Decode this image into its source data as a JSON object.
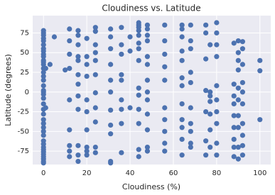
{
  "chart_data": {
    "type": "scatter",
    "title": "Cloudiness vs. Latitude",
    "x_label": "Cloudiness (%)",
    "y_label": "Latitude (degrees)",
    "color": "#4c72b0",
    "grid": true,
    "xlim": [
      -5,
      105
    ],
    "ylim": [
      -92,
      97
    ],
    "xticks": [
      0,
      20,
      40,
      60,
      80,
      100
    ],
    "yticks": [
      -75,
      -50,
      -25,
      0,
      25,
      50,
      75
    ],
    "x": [
      0,
      0,
      0,
      0,
      0,
      0,
      0,
      0,
      0,
      0,
      0,
      0,
      0,
      0,
      0,
      0,
      0,
      0,
      0,
      0,
      0,
      0,
      0,
      0,
      0,
      0,
      0,
      0,
      0,
      0,
      0,
      0,
      0,
      0,
      0,
      0,
      0,
      0,
      0,
      0,
      1,
      1,
      3,
      5,
      10,
      12,
      12,
      12,
      12,
      12,
      12,
      12,
      12,
      12,
      16,
      16,
      16,
      16,
      16,
      16,
      16,
      16,
      16,
      16,
      16,
      16,
      20,
      20,
      20,
      20,
      20,
      20,
      20,
      20,
      20,
      20,
      24,
      24,
      24,
      24,
      24,
      24,
      24,
      24,
      24,
      24,
      24,
      31,
      31,
      31,
      31,
      31,
      31,
      31,
      31,
      31,
      31,
      31,
      36,
      36,
      36,
      36,
      36,
      36,
      36,
      36,
      36,
      40,
      40,
      40,
      44,
      44,
      44,
      44,
      44,
      44,
      44,
      44,
      44,
      44,
      44,
      44,
      44,
      44,
      48,
      48,
      48,
      48,
      48,
      48,
      48,
      48,
      48,
      48,
      48,
      48,
      48,
      56,
      56,
      56,
      56,
      56,
      56,
      56,
      56,
      56,
      56,
      64,
      64,
      64,
      64,
      64,
      64,
      64,
      64,
      64,
      64,
      64,
      64,
      68,
      68,
      68,
      68,
      68,
      68,
      68,
      68,
      68,
      68,
      75,
      75,
      75,
      75,
      75,
      75,
      75,
      77,
      77,
      77,
      77,
      77,
      77,
      77,
      80,
      80,
      80,
      80,
      80,
      80,
      80,
      80,
      80,
      80,
      88,
      88,
      88,
      88,
      88,
      88,
      88,
      88,
      88,
      90,
      90,
      90,
      90,
      90,
      90,
      90,
      90,
      90,
      90,
      92,
      92,
      92,
      92,
      92,
      92,
      92,
      92,
      92,
      92,
      100,
      100,
      100
    ],
    "values": [
      78,
      75,
      72,
      68,
      65,
      60,
      55,
      52,
      48,
      45,
      40,
      38,
      35,
      30,
      25,
      20,
      15,
      8,
      2,
      -3,
      -8,
      -15,
      -22,
      -28,
      -35,
      -40,
      -45,
      -50,
      -55,
      -62,
      -66,
      -70,
      -73,
      -76,
      -79,
      -82,
      -85,
      -88,
      -90,
      0,
      30,
      -20,
      35,
      70,
      28,
      80,
      65,
      48,
      30,
      -10,
      -48,
      -68,
      -75,
      -82,
      78,
      72,
      60,
      45,
      40,
      22,
      10,
      -5,
      -22,
      -68,
      -80,
      -88,
      68,
      45,
      35,
      20,
      -10,
      -25,
      -48,
      -70,
      -75,
      -80,
      82,
      77,
      60,
      50,
      40,
      22,
      -1,
      -20,
      -38,
      -70,
      -77,
      80,
      70,
      55,
      35,
      15,
      0,
      -23,
      -42,
      -53,
      -88,
      -90,
      82,
      60,
      48,
      22,
      15,
      -10,
      -22,
      -40,
      -77,
      70,
      52,
      -20,
      88,
      85,
      82,
      78,
      72,
      62,
      55,
      40,
      5,
      -4,
      -22,
      -40,
      -73,
      -82,
      85,
      80,
      72,
      65,
      45,
      35,
      15,
      0,
      -10,
      -28,
      -48,
      -70,
      -75,
      85,
      65,
      48,
      32,
      15,
      -20,
      -35,
      -50,
      -65,
      -75,
      85,
      80,
      70,
      52,
      40,
      18,
      8,
      -15,
      -35,
      -45,
      -60,
      -80,
      85,
      65,
      55,
      25,
      12,
      -20,
      -40,
      -50,
      -65,
      -70,
      85,
      75,
      42,
      2,
      -25,
      -62,
      -80,
      60,
      0,
      -5,
      -12,
      -28,
      -48,
      -70,
      88,
      75,
      60,
      45,
      8,
      -10,
      -25,
      -40,
      -65,
      -80,
      62,
      10,
      -5,
      -15,
      -30,
      -45,
      -60,
      -70,
      -82,
      65,
      50,
      40,
      28,
      5,
      -10,
      -30,
      -45,
      -70,
      -85,
      64,
      55,
      35,
      12,
      0,
      -15,
      -40,
      -55,
      -68,
      -80,
      40,
      27,
      -35
    ]
  }
}
